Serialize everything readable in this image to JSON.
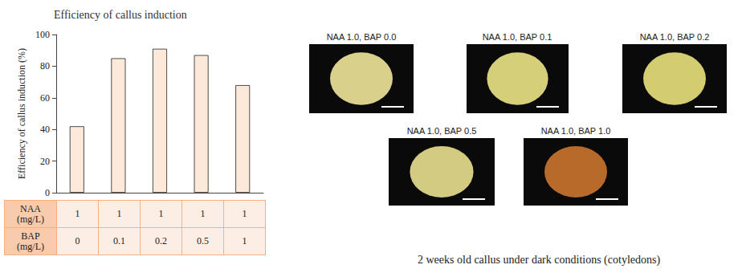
{
  "chart_data": {
    "type": "bar",
    "title": "Efficiency of callus induction",
    "y_label": "Efficiency of callus induction (%)",
    "categories": [
      null,
      null,
      null,
      null,
      null
    ],
    "values": [
      42,
      85,
      91,
      87,
      68
    ],
    "color": "#fde9d9",
    "ylim": [
      0,
      100
    ],
    "yticks": [
      0,
      20,
      40,
      60,
      80,
      100
    ],
    "grid": false,
    "table": {
      "rows": [
        {
          "label": "NAA (mg/L)",
          "values": [
            1,
            1,
            1,
            1,
            1
          ]
        },
        {
          "label": "BAP (mg/L)",
          "values": [
            0,
            0.1,
            0.2,
            0.5,
            1
          ]
        }
      ]
    }
  },
  "images": {
    "panels": [
      {
        "label": "NAA 1.0, BAP 0.0"
      },
      {
        "label": "NAA 1.0, BAP 0.1"
      },
      {
        "label": "NAA 1.0, BAP 0.2"
      },
      {
        "label": "NAA 1.0, BAP 0.5"
      },
      {
        "label": "NAA 1.0, BAP 1.0"
      }
    ],
    "caption": "2 weeks old callus under dark conditions (cotyledons)"
  }
}
